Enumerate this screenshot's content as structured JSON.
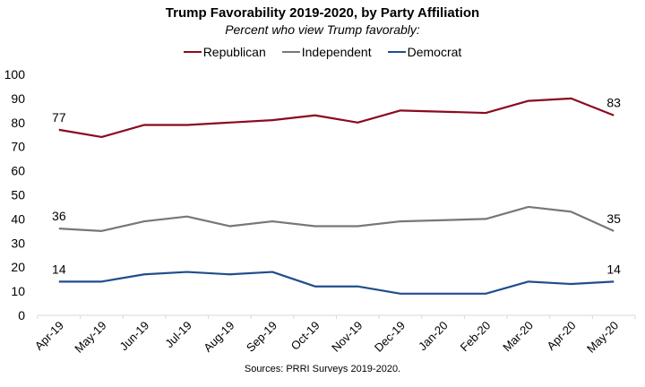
{
  "chart_data": {
    "type": "line",
    "title": "Trump Favorability 2019-2020, by Party Affiliation",
    "subtitle": "Percent who view Trump favorably:",
    "source": "Sources: PRRI Surveys 2019-2020.",
    "xlabel": "",
    "ylabel": "",
    "ylim": [
      0,
      100
    ],
    "yticks": [
      0,
      10,
      20,
      30,
      40,
      50,
      60,
      70,
      80,
      90,
      100
    ],
    "grid": false,
    "legend_position": "top-center",
    "categories": [
      "Apr-19",
      "May-19",
      "Jun-19",
      "Jul-19",
      "Aug-19",
      "Sep-19",
      "Oct-19",
      "Nov-19",
      "Dec-19",
      "Jan-20",
      "Feb-20",
      "Mar-20",
      "Apr-20",
      "May-20"
    ],
    "series": [
      {
        "name": "Republican",
        "color": "#8B0A1E",
        "values": [
          77,
          74,
          79,
          79,
          80,
          81,
          83,
          80,
          85,
          null,
          84,
          89,
          90,
          83
        ],
        "labels": {
          "0": "77",
          "13": "83"
        }
      },
      {
        "name": "Independent",
        "color": "#777777",
        "values": [
          36,
          35,
          39,
          41,
          37,
          39,
          37,
          37,
          39,
          null,
          40,
          45,
          43,
          35
        ],
        "labels": {
          "0": "36",
          "13": "35"
        }
      },
      {
        "name": "Democrat",
        "color": "#1F4E8C",
        "values": [
          14,
          14,
          17,
          18,
          17,
          18,
          12,
          12,
          9,
          null,
          9,
          14,
          13,
          14
        ],
        "labels": {
          "0": "14",
          "13": "14"
        }
      }
    ]
  }
}
